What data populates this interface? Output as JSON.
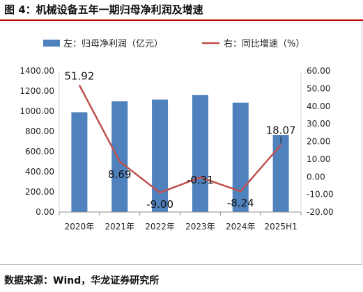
{
  "figure_title": "图 4：机械设备五年一期归母净利润及增速",
  "source": "数据来源：Wind，华龙证券研究所",
  "colors": {
    "bar": "#4f81bd",
    "line": "#c0504d",
    "rule": "#c00000"
  },
  "chart_data": {
    "type": "bar",
    "categories": [
      "2020年",
      "2021年",
      "2022年",
      "2023年",
      "2024年",
      "2025H1"
    ],
    "series": [
      {
        "name": "左：归母净利润（亿元）",
        "type": "bar",
        "axis": "left",
        "values": [
          990,
          1100,
          1115,
          1160,
          1085,
          765
        ]
      },
      {
        "name": "右：同比增速（%）",
        "type": "line",
        "axis": "right",
        "values": [
          51.92,
          8.69,
          -9.0,
          -0.31,
          -8.24,
          18.07
        ]
      }
    ],
    "left_axis": {
      "min": 0,
      "max": 1400,
      "step": 200,
      "ticks": [
        "0.00",
        "200.00",
        "400.00",
        "600.00",
        "800.00",
        "1000.00",
        "1200.00",
        "1400.00"
      ]
    },
    "right_axis": {
      "min": -20,
      "max": 60,
      "step": 10,
      "ticks": [
        "-20.00",
        "-10.00",
        "0.00",
        "10.00",
        "20.00",
        "30.00",
        "40.00",
        "50.00",
        "60.00"
      ]
    },
    "data_labels": [
      "51.92",
      "8.69",
      "-9.00",
      "-0.31",
      "-8.24",
      "18.07"
    ],
    "legend": "top",
    "grid": false
  }
}
